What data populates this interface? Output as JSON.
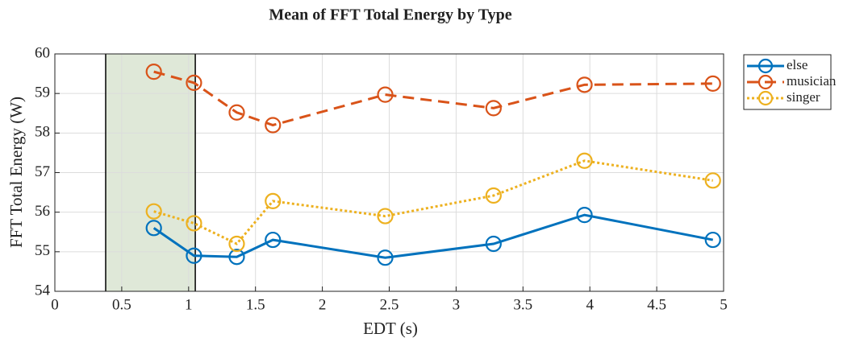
{
  "chart_data": {
    "type": "line",
    "title": "Mean of FFT Total Energy by Type",
    "x_label": "EDT (s)",
    "y_label": "FFT Total Energy (W)",
    "x": [
      0.74,
      1.04,
      1.36,
      1.63,
      2.47,
      3.28,
      3.96,
      4.92
    ],
    "series": [
      {
        "name": "else",
        "color": "#0072bd",
        "line_style": "solid",
        "values": [
          55.6,
          54.9,
          54.87,
          55.3,
          54.85,
          55.2,
          55.93,
          55.3
        ]
      },
      {
        "name": "musician",
        "color": "#d95319",
        "line_style": "dashed",
        "values": [
          59.55,
          59.27,
          58.52,
          58.2,
          58.97,
          58.63,
          59.22,
          59.25
        ]
      },
      {
        "name": "singer",
        "color": "#edb120",
        "line_style": "dotted",
        "values": [
          56.02,
          55.72,
          55.2,
          56.28,
          55.9,
          56.42,
          57.3,
          56.8
        ]
      }
    ],
    "highlight": {
      "x": [
        0.38,
        1.05
      ],
      "color": "#dfe8d8"
    },
    "xlim": [
      0,
      5
    ],
    "xticks": [
      0,
      0.5,
      1,
      1.5,
      2,
      2.5,
      3,
      3.5,
      4,
      4.5,
      5
    ],
    "ylim": [
      54,
      60
    ],
    "yticks": [
      54,
      55,
      56,
      57,
      58,
      59,
      60
    ],
    "grid": true,
    "legend": "outside-top-right"
  }
}
